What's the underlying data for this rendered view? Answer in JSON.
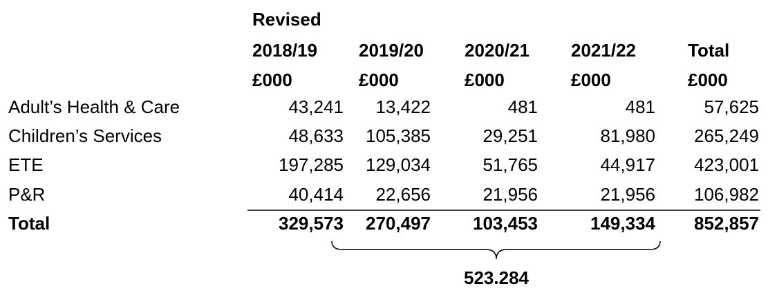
{
  "table": {
    "header": [
      [
        "Revised",
        "2018/19",
        "£000"
      ],
      [
        "2019/20",
        "£000"
      ],
      [
        "2020/21",
        "£000"
      ],
      [
        "2021/22",
        "£000"
      ],
      [
        "Total",
        "£000"
      ]
    ],
    "rows": [
      [
        "Adult’s Health & Care",
        "43,241",
        "13,422",
        "481",
        "481",
        "57,625"
      ],
      [
        "Children’s Services",
        "48,633",
        "105,385",
        "29,251",
        "81,980",
        "265,249"
      ],
      [
        "ETE",
        "197,285",
        "129,034",
        "51,765",
        "44,917",
        "423,001"
      ],
      [
        "P&R",
        "40,414",
        "22,656",
        "21,956",
        "21,956",
        "106,982"
      ]
    ],
    "total": [
      "Total",
      "329,573",
      "270,497",
      "103,453",
      "149,334",
      "852,857"
    ]
  },
  "brace_label": "523.284"
}
